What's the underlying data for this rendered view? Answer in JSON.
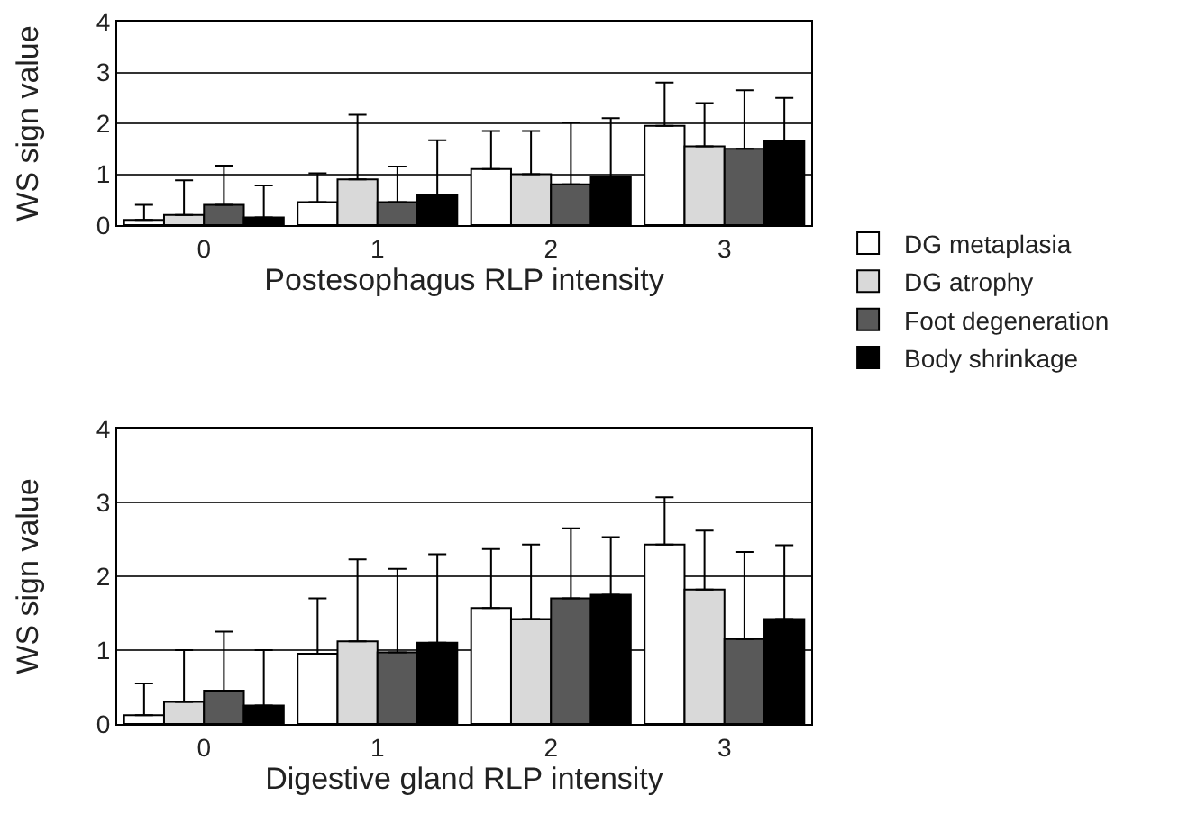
{
  "chart_data": [
    {
      "type": "bar",
      "xlabel": "Postesophagus RLP intensity",
      "ylabel": "WS sign value",
      "categories": [
        "0",
        "1",
        "2",
        "3"
      ],
      "ylim": [
        0,
        4
      ],
      "yticks": [
        0,
        1,
        2,
        3,
        4
      ],
      "grid": "y",
      "legend": "right",
      "series": [
        {
          "name": "DG metaplasia",
          "color": "#ffffff",
          "values": [
            0.1,
            0.45,
            1.1,
            1.95
          ],
          "errors": [
            [
              0.1,
              0.4
            ],
            [
              0.45,
              1.02
            ],
            [
              1.1,
              1.85
            ],
            [
              1.95,
              2.8
            ]
          ]
        },
        {
          "name": "DG atrophy",
          "color": "#d9d9d9",
          "values": [
            0.2,
            0.9,
            1.0,
            1.55
          ],
          "errors": [
            [
              0.2,
              0.88
            ],
            [
              0.9,
              2.17
            ],
            [
              1.0,
              1.85
            ],
            [
              1.55,
              2.4
            ]
          ]
        },
        {
          "name": "Foot degeneration",
          "color": "#595959",
          "values": [
            0.4,
            0.45,
            0.8,
            1.5
          ],
          "errors": [
            [
              0.4,
              1.17
            ],
            [
              0.45,
              1.15
            ],
            [
              0.8,
              2.02
            ],
            [
              1.5,
              2.65
            ]
          ]
        },
        {
          "name": "Body shrinkage",
          "color": "#000000",
          "values": [
            0.15,
            0.6,
            0.95,
            1.65
          ],
          "errors": [
            [
              0.15,
              0.78
            ],
            [
              0.6,
              1.67
            ],
            [
              0.95,
              2.1
            ],
            [
              1.65,
              2.5
            ]
          ]
        }
      ]
    },
    {
      "type": "bar",
      "xlabel": "Digestive gland RLP intensity",
      "ylabel": "WS sign value",
      "categories": [
        "0",
        "1",
        "2",
        "3"
      ],
      "ylim": [
        0,
        4
      ],
      "yticks": [
        0,
        1,
        2,
        3,
        4
      ],
      "grid": "y",
      "series": [
        {
          "color": "#ffffff",
          "values": [
            0.12,
            0.95,
            1.57,
            2.43
          ],
          "errors": [
            [
              0.12,
              0.55
            ],
            [
              0.95,
              1.7
            ],
            [
              1.57,
              2.37
            ],
            [
              2.43,
              3.07
            ]
          ]
        },
        {
          "color": "#d9d9d9",
          "values": [
            0.3,
            1.12,
            1.42,
            1.82
          ],
          "errors": [
            [
              0.3,
              1.0
            ],
            [
              1.12,
              2.23
            ],
            [
              1.42,
              2.43
            ],
            [
              1.82,
              2.62
            ]
          ]
        },
        {
          "color": "#595959",
          "values": [
            0.45,
            0.97,
            1.7,
            1.15
          ],
          "errors": [
            [
              0.45,
              1.25
            ],
            [
              0.97,
              2.1
            ],
            [
              1.7,
              2.65
            ],
            [
              1.15,
              2.33
            ]
          ]
        },
        {
          "color": "#000000",
          "values": [
            0.25,
            1.1,
            1.75,
            1.42
          ],
          "errors": [
            [
              0.25,
              1.0
            ],
            [
              1.1,
              2.3
            ],
            [
              1.75,
              2.53
            ],
            [
              1.42,
              2.42
            ]
          ]
        }
      ]
    }
  ]
}
